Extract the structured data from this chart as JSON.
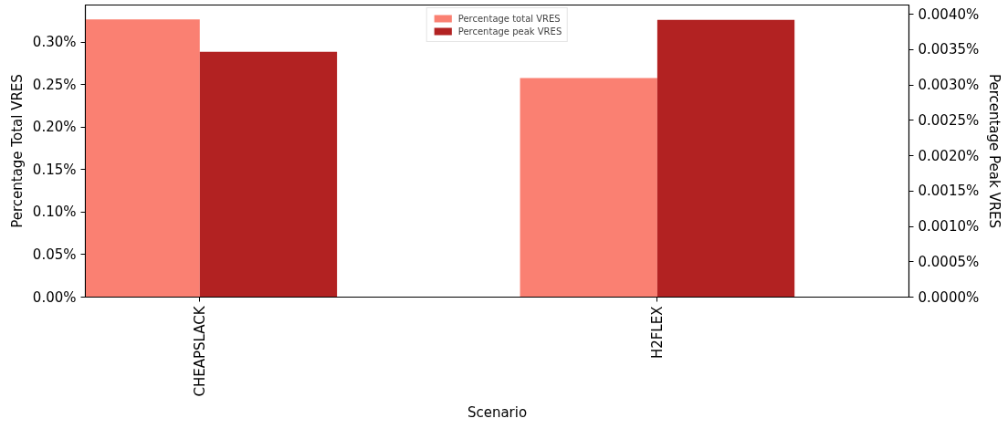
{
  "chart_data": {
    "type": "bar",
    "xlabel": "Scenario",
    "ylabel": "Percentage Total VRES",
    "y2label": "Percentage Peak VRES",
    "categories": [
      "CHEAPSLACK",
      "H2FLEX"
    ],
    "series": [
      {
        "name": "Percentage total VRES",
        "color": "#fa8072",
        "values": [
          0.327,
          0.258
        ]
      },
      {
        "name": "Percentage peak VRES",
        "color": "#b22222",
        "values": [
          0.00347,
          0.00392
        ],
        "axis": "y2"
      }
    ],
    "ylim": [
      0,
      0.344
    ],
    "yticks": [
      {
        "value": 0,
        "label": "0.00%"
      },
      {
        "value": 0.05,
        "label": "0.05%"
      },
      {
        "value": 0.1,
        "label": "0.10%"
      },
      {
        "value": 0.15,
        "label": "0.15%"
      },
      {
        "value": 0.2,
        "label": "0.20%"
      },
      {
        "value": 0.25,
        "label": "0.25%"
      },
      {
        "value": 0.3,
        "label": "0.30%"
      }
    ],
    "y2lim": [
      0,
      0.00413
    ],
    "y2ticks": [
      {
        "value": 0,
        "label": "0.0000%"
      },
      {
        "value": 0.0005,
        "label": "0.0005%"
      },
      {
        "value": 0.001,
        "label": "0.0010%"
      },
      {
        "value": 0.0015,
        "label": "0.0015%"
      },
      {
        "value": 0.002,
        "label": "0.0020%"
      },
      {
        "value": 0.0025,
        "label": "0.0025%"
      },
      {
        "value": 0.003,
        "label": "0.0030%"
      },
      {
        "value": 0.0035,
        "label": "0.0035%"
      },
      {
        "value": 0.004,
        "label": "0.0040%"
      }
    ],
    "grid": false,
    "legend": "top"
  }
}
